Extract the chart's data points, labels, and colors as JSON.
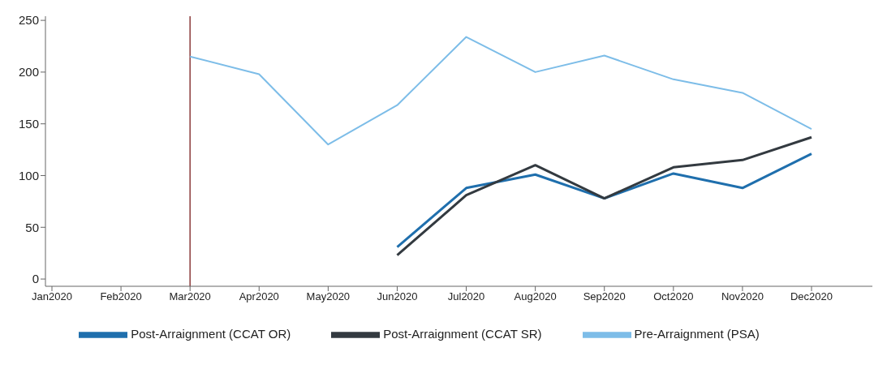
{
  "chart_data": {
    "type": "line",
    "categories": [
      "Jan2020",
      "Feb2020",
      "Mar2020",
      "Apr2020",
      "May2020",
      "Jun2020",
      "Jul2020",
      "Aug2020",
      "Sep2020",
      "Oct2020",
      "Nov2020",
      "Dec2020"
    ],
    "series": [
      {
        "name": "Pre-Arraignment (PSA)",
        "color": "#7dbde8",
        "values": [
          null,
          null,
          215,
          198,
          130,
          168,
          234,
          200,
          216,
          193,
          180,
          145
        ]
      },
      {
        "name": "Post-Arraignment (CCAT OR)",
        "color": "#1f6fad",
        "values": [
          null,
          null,
          null,
          null,
          null,
          31,
          88,
          101,
          78,
          102,
          88,
          121
        ]
      },
      {
        "name": "Post-Arraignment (CCAT SR)",
        "color": "#333a40",
        "values": [
          null,
          null,
          null,
          null,
          null,
          23,
          81,
          110,
          78,
          108,
          115,
          137
        ]
      }
    ],
    "ylim": [
      -7,
      254
    ],
    "yticks": [
      0,
      50,
      100,
      150,
      200,
      250
    ],
    "grid": false,
    "legend": "bottom",
    "marker": "none",
    "line_style": "solid",
    "ref_lines": [
      {
        "axis": "x",
        "value": "Mar2020",
        "color": "#8b3a3a"
      }
    ]
  }
}
